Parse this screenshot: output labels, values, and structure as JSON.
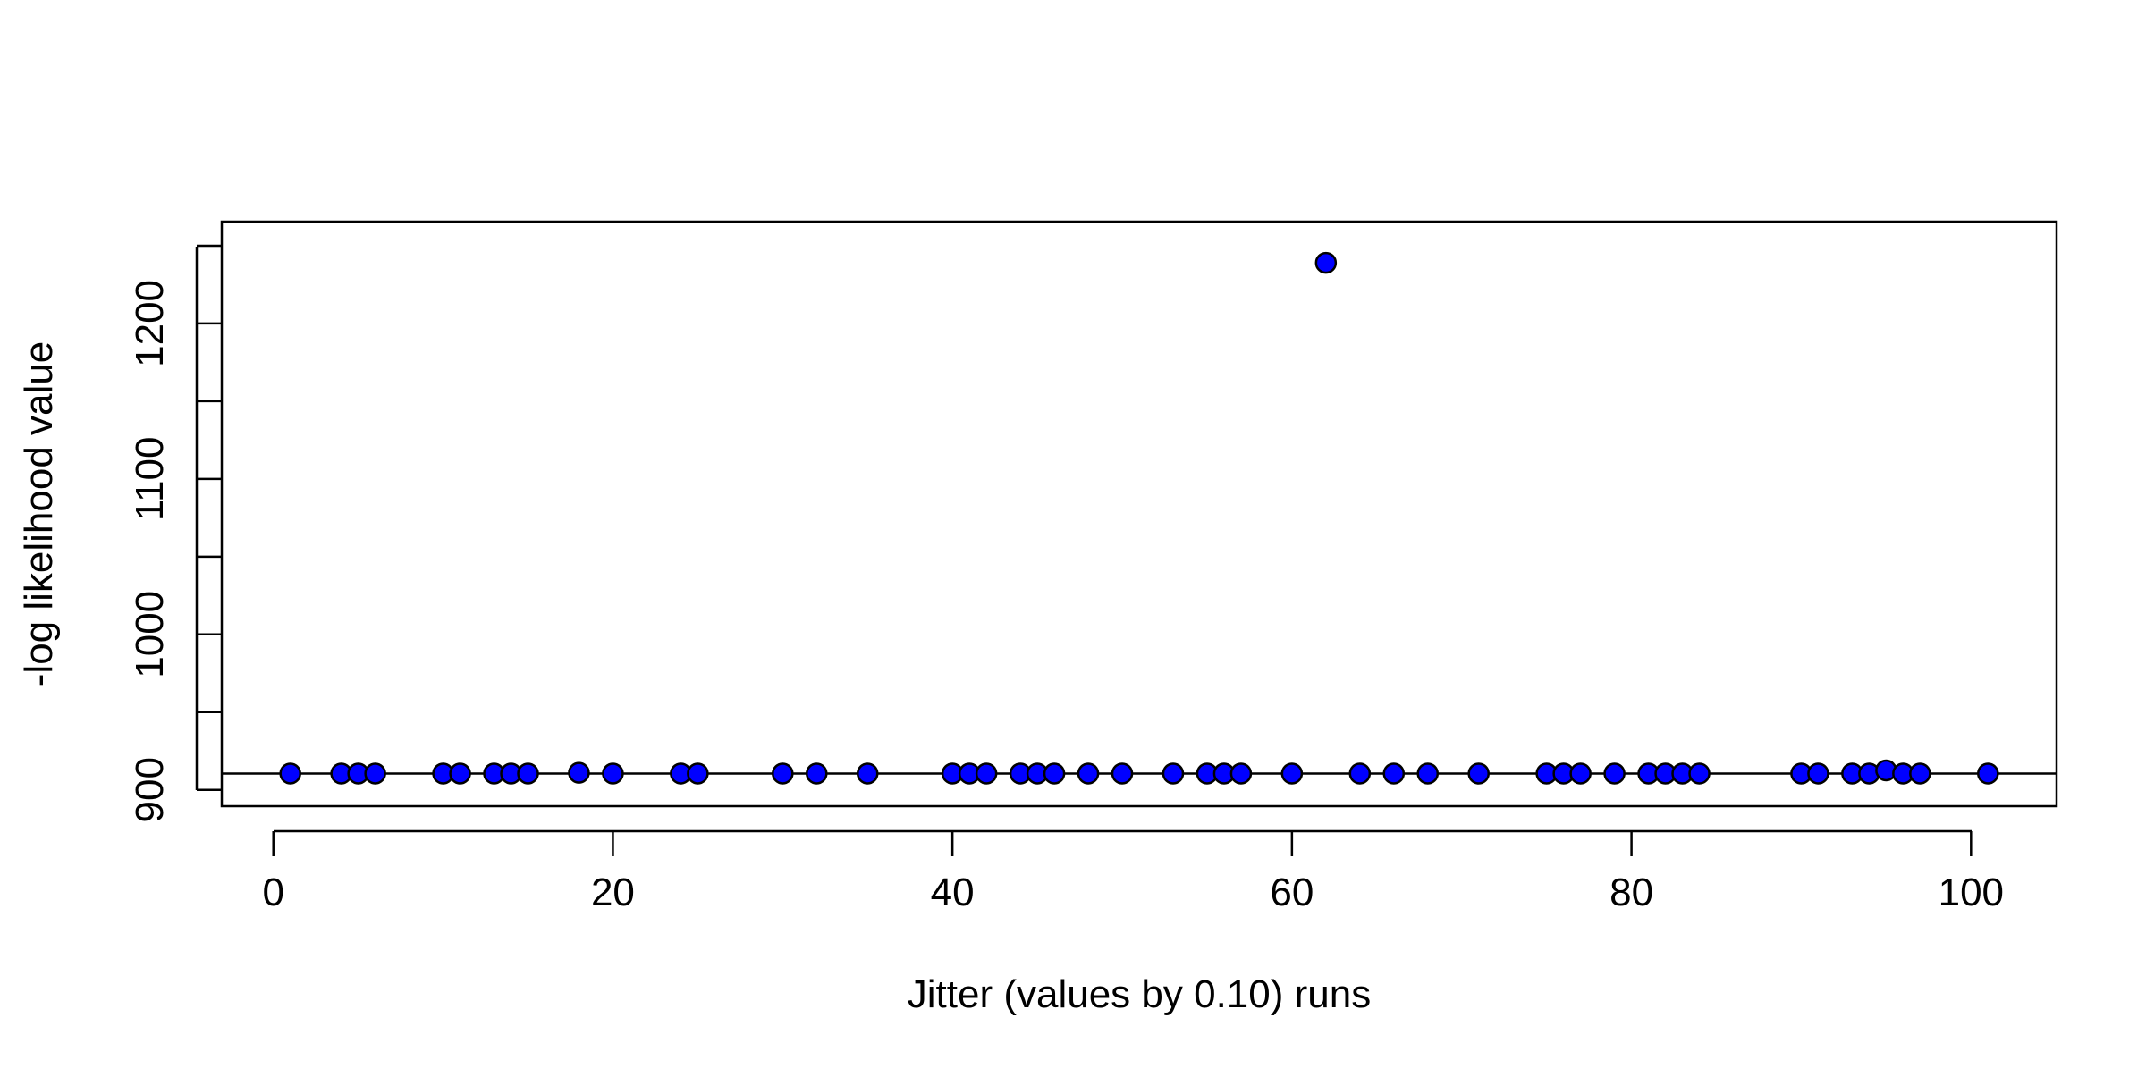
{
  "chart_data": {
    "type": "scatter",
    "title": "",
    "xlabel": "Jitter (values by 0.10) runs",
    "ylabel": "-log likelihood value",
    "xlim": [
      -3.04,
      105.04
    ],
    "ylim": [
      889.5,
      1265.5
    ],
    "x_ticks": [
      0,
      20,
      40,
      60,
      80,
      100
    ],
    "y_ticks": [
      900,
      950,
      1000,
      1050,
      1100,
      1150,
      1200,
      1250
    ],
    "y_tick_labels": [
      "900",
      "",
      "1000",
      "",
      "1100",
      "",
      "1200",
      ""
    ],
    "reference_line": 910.5,
    "marker_color": "#0000FF",
    "marker_edge_color": "#000000",
    "grid": false,
    "legend": "none",
    "points": [
      {
        "x": 1,
        "y": 910.5
      },
      {
        "x": 4,
        "y": 910.5
      },
      {
        "x": 5,
        "y": 910.5
      },
      {
        "x": 6,
        "y": 910.5
      },
      {
        "x": 10,
        "y": 910.5
      },
      {
        "x": 11,
        "y": 910.5
      },
      {
        "x": 13,
        "y": 910.5
      },
      {
        "x": 14,
        "y": 910.5
      },
      {
        "x": 15,
        "y": 910.5
      },
      {
        "x": 18,
        "y": 911
      },
      {
        "x": 20,
        "y": 910.5
      },
      {
        "x": 24,
        "y": 910.5
      },
      {
        "x": 25,
        "y": 910.5
      },
      {
        "x": 30,
        "y": 910.5
      },
      {
        "x": 32,
        "y": 910.5
      },
      {
        "x": 35,
        "y": 910.5
      },
      {
        "x": 40,
        "y": 910.5
      },
      {
        "x": 41,
        "y": 910.5
      },
      {
        "x": 42,
        "y": 910.5
      },
      {
        "x": 44,
        "y": 910.5
      },
      {
        "x": 45,
        "y": 910.5
      },
      {
        "x": 46,
        "y": 910.5
      },
      {
        "x": 48,
        "y": 910.5
      },
      {
        "x": 50,
        "y": 910.5
      },
      {
        "x": 53,
        "y": 910.5
      },
      {
        "x": 55,
        "y": 910.5
      },
      {
        "x": 56,
        "y": 910.5
      },
      {
        "x": 57,
        "y": 910.5
      },
      {
        "x": 60,
        "y": 910.5
      },
      {
        "x": 62,
        "y": 1239
      },
      {
        "x": 64,
        "y": 910.5
      },
      {
        "x": 66,
        "y": 910.5
      },
      {
        "x": 68,
        "y": 910.5
      },
      {
        "x": 71,
        "y": 910.5
      },
      {
        "x": 75,
        "y": 910.5
      },
      {
        "x": 76,
        "y": 910.5
      },
      {
        "x": 77,
        "y": 910.5
      },
      {
        "x": 79,
        "y": 910.5
      },
      {
        "x": 81,
        "y": 910.5
      },
      {
        "x": 82,
        "y": 910.5
      },
      {
        "x": 83,
        "y": 910.5
      },
      {
        "x": 84,
        "y": 910.5
      },
      {
        "x": 90,
        "y": 910.5
      },
      {
        "x": 91,
        "y": 910.5
      },
      {
        "x": 93,
        "y": 910.5
      },
      {
        "x": 94,
        "y": 910.5
      },
      {
        "x": 95,
        "y": 912.5
      },
      {
        "x": 96,
        "y": 910.5
      },
      {
        "x": 97,
        "y": 910.5
      },
      {
        "x": 101,
        "y": 910.5
      }
    ]
  }
}
